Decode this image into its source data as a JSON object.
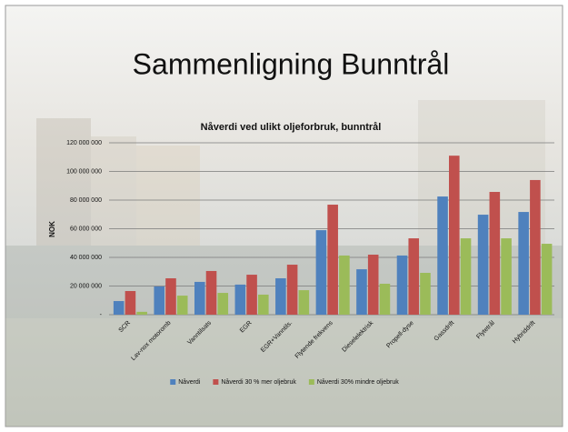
{
  "slide_title": "Sammenligning Bunntrål",
  "chart_data": {
    "type": "bar",
    "title": "Nåverdi ved ulikt oljeforbruk, bunntrål",
    "y_label": "NOK",
    "categories": [
      "SCR",
      "Lav-nox motoromb",
      "Vanntilsats",
      "EGR",
      "EGR+Vanntils.",
      "Flytende frekvens",
      "Dieselelektrisk",
      "Propell-dyse",
      "Gassdrift",
      "Flytetrål",
      "Hybriddrift"
    ],
    "series": [
      {
        "name": "Nåverdi",
        "color": "#4f81bd",
        "values": [
          9500000,
          19700000,
          22900000,
          21000000,
          25400000,
          59000000,
          31700000,
          41300000,
          82500000,
          69800000,
          71700000
        ]
      },
      {
        "name": "Nåverdi 30 % mer oljebruk",
        "color": "#c0504d",
        "values": [
          16500000,
          25400000,
          30500000,
          27900000,
          34900000,
          76800000,
          41900000,
          53300000,
          111000000,
          85700000,
          94000000
        ]
      },
      {
        "name": "Nåverdi 30% mindre oljebruk",
        "color": "#9bbb59",
        "values": [
          2000000,
          13300000,
          15200000,
          14000000,
          17100000,
          41300000,
          21600000,
          29200000,
          53300000,
          53300000,
          49500000
        ]
      }
    ],
    "ylim": [
      0,
      120000000
    ],
    "yticks": [
      {
        "value": 0,
        "label": "-"
      },
      {
        "value": 20000000,
        "label": "20 000 000"
      },
      {
        "value": 40000000,
        "label": "40 000 000"
      },
      {
        "value": 60000000,
        "label": "60 000 000"
      },
      {
        "value": 80000000,
        "label": "80 000 000"
      },
      {
        "value": 100000000,
        "label": "100 000 000"
      },
      {
        "value": 120000000,
        "label": "120 000 000"
      }
    ],
    "grid": true,
    "legend": "bottom"
  }
}
